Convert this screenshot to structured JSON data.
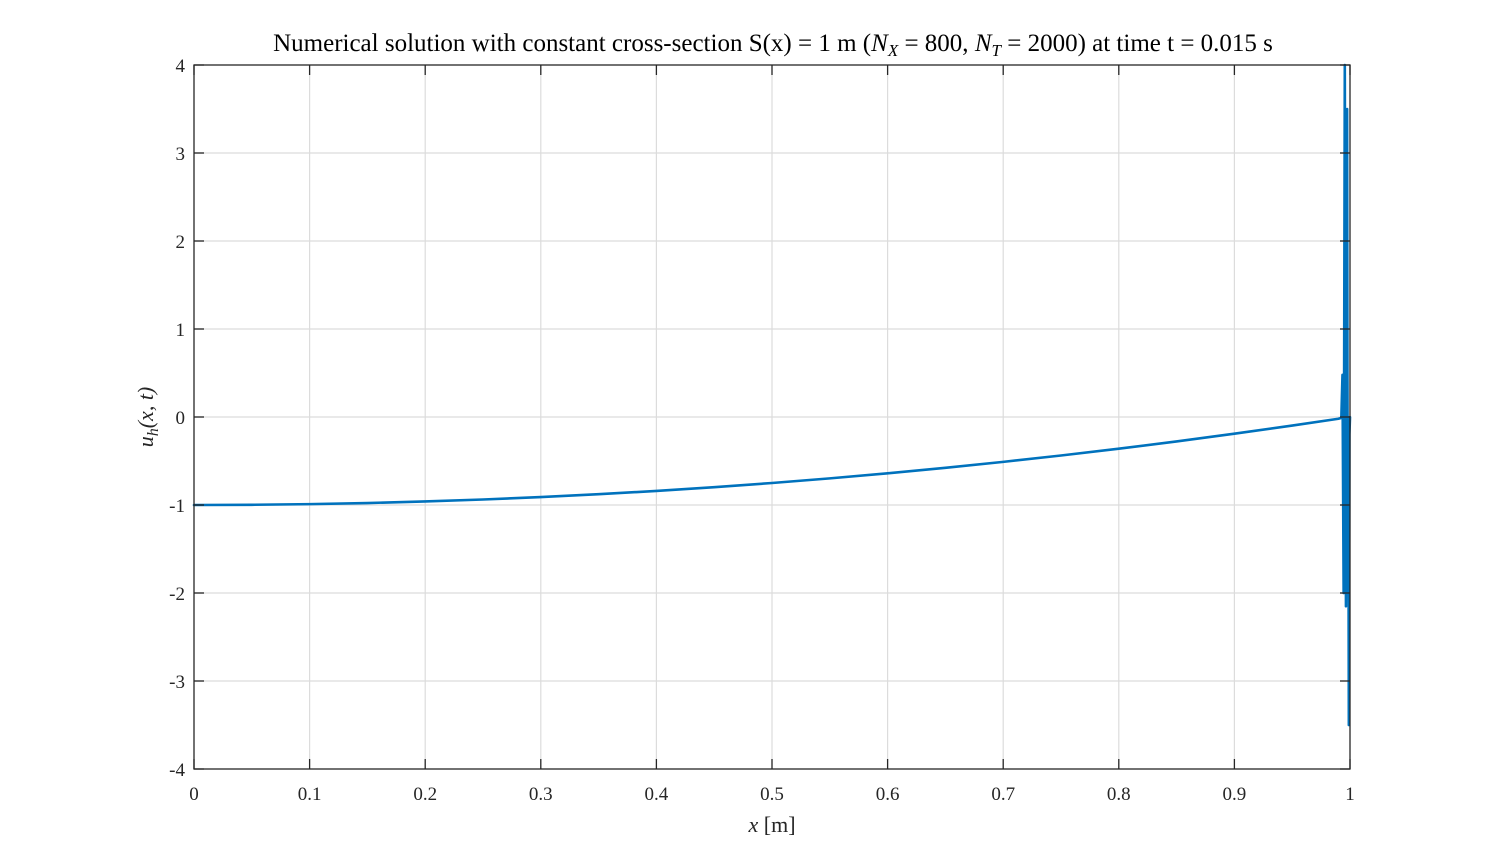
{
  "chart_data": {
    "type": "line",
    "title": {
      "prefix": "Numerical solution with constant cross-section S(x) = 1 m (",
      "nx_symbol": "N",
      "nx_sub": "X",
      "nx_value": " = 800, ",
      "nt_symbol": "N",
      "nt_sub": "T",
      "nt_value": " = 2000) at time t = 0.015 s"
    },
    "xlabel": {
      "var": "x",
      "unit": " [m]"
    },
    "ylabel": {
      "var": "u",
      "sub": "h",
      "rest": "(x, t)"
    },
    "xlim": [
      0,
      1
    ],
    "ylim": [
      -4,
      4
    ],
    "xticks": [
      0,
      0.1,
      0.2,
      0.3,
      0.4,
      0.5,
      0.6,
      0.7,
      0.8,
      0.9,
      1
    ],
    "xtick_labels": [
      "0",
      "0.1",
      "0.2",
      "0.3",
      "0.4",
      "0.5",
      "0.6",
      "0.7",
      "0.8",
      "0.9",
      "1"
    ],
    "yticks": [
      -4,
      -3,
      -2,
      -1,
      0,
      1,
      2,
      3,
      4
    ],
    "ytick_labels": [
      "-4",
      "-3",
      "-2",
      "-1",
      "0",
      "1",
      "2",
      "3",
      "4"
    ],
    "grid": true,
    "series": [
      {
        "name": "u_h(x,t)",
        "color": "#0072BD",
        "x": [
          0,
          0.002,
          0.05,
          0.1,
          0.15,
          0.2,
          0.25,
          0.3,
          0.35,
          0.4,
          0.45,
          0.5,
          0.55,
          0.6,
          0.65,
          0.7,
          0.75,
          0.8,
          0.85,
          0.9,
          0.95,
          0.99,
          0.9925,
          0.9935,
          0.9945,
          0.9955,
          0.9965,
          0.9975,
          0.998,
          0.9985,
          0.999,
          0.9995,
          1.0
        ],
        "values": [
          -1.0,
          -1.0,
          -0.9975,
          -0.99,
          -0.9775,
          -0.96,
          -0.9375,
          -0.91,
          -0.8775,
          -0.84,
          -0.7975,
          -0.75,
          -0.6975,
          -0.64,
          -0.5775,
          -0.51,
          -0.4375,
          -0.36,
          -0.2775,
          -0.19,
          -0.0975,
          -0.02,
          -0.01,
          0.48,
          -2.0,
          4.0,
          -2.15,
          3.5,
          -1.5,
          0.0,
          -3.5,
          -0.2,
          0.0
        ]
      }
    ]
  },
  "colors": {
    "line": "#0072BD",
    "grid": "#dcdcdc",
    "axis": "#262626"
  }
}
